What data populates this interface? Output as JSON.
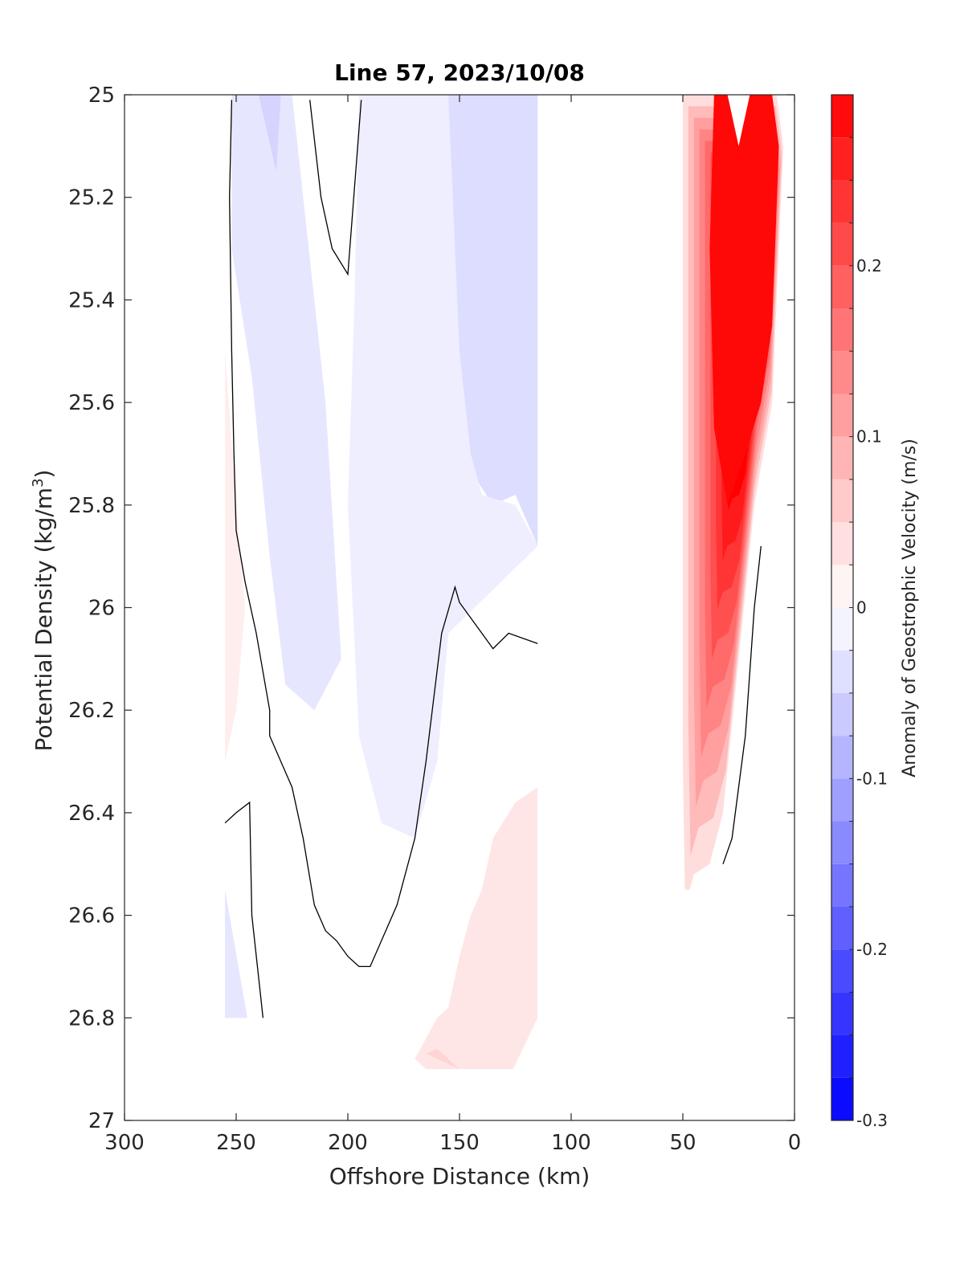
{
  "chart_data": {
    "type": "contourf",
    "title": "Line 57, 2023/10/08",
    "xlabel": "Offshore Distance (km)",
    "ylabel_main": "Potential Density (kg/m",
    "ylabel_sup": "3",
    "ylabel_close": ")",
    "xlim": [
      300,
      0
    ],
    "x_reversed": true,
    "ylim": [
      25,
      27
    ],
    "y_reversed": true,
    "xticks": [
      300,
      250,
      200,
      150,
      100,
      50,
      0
    ],
    "xtick_labels": [
      "300",
      "250",
      "200",
      "150",
      "100",
      "50",
      "0"
    ],
    "yticks": [
      25,
      25.2,
      25.4,
      25.6,
      25.8,
      26,
      26.2,
      26.4,
      26.6,
      26.8,
      27
    ],
    "ytick_labels": [
      "25",
      "25.2",
      "25.4",
      "25.6",
      "25.8",
      "26",
      "26.2",
      "26.4",
      "26.6",
      "26.8",
      "27"
    ],
    "colorbar": {
      "label": "Anomaly of Geostrophic Velocity (m/s)",
      "range": [
        -0.3,
        0.3
      ],
      "levels": [
        -0.3,
        -0.275,
        -0.25,
        -0.225,
        -0.2,
        -0.175,
        -0.15,
        -0.125,
        -0.1,
        -0.075,
        -0.05,
        -0.025,
        0,
        0.025,
        0.05,
        0.075,
        0.1,
        0.125,
        0.15,
        0.175,
        0.2,
        0.225,
        0.25,
        0.275,
        0.3
      ],
      "ticks": [
        -0.3,
        -0.2,
        -0.1,
        0,
        0.1,
        0.2
      ],
      "tick_labels": [
        "-0.3",
        "-0.2",
        "-0.1",
        "0",
        "0.1",
        "0.2"
      ],
      "colormap": "blue-white-red"
    },
    "colors": {
      "negative_max": "#0000ff",
      "zero": "#ffffff",
      "positive_max": "#ff0000",
      "contour_line": "#000000"
    },
    "regions": [
      {
        "name": "inshore-jet",
        "value": 0.25,
        "points": [
          [
            50,
            25
          ],
          [
            8,
            25
          ],
          [
            5,
            25.1
          ],
          [
            10,
            25.6
          ],
          [
            18,
            25.8
          ],
          [
            25,
            26.1
          ],
          [
            32,
            26.4
          ],
          [
            38,
            26.5
          ],
          [
            45,
            26.52
          ],
          [
            49,
            26.58
          ],
          [
            50,
            26.3
          ]
        ]
      },
      {
        "name": "inshore-jet-core",
        "value": 0.29,
        "points": [
          [
            36,
            25
          ],
          [
            10,
            25
          ],
          [
            7,
            25.1
          ],
          [
            10,
            25.45
          ],
          [
            15,
            25.6
          ],
          [
            22,
            25.7
          ],
          [
            30,
            25.8
          ],
          [
            36,
            25.65
          ],
          [
            38,
            25.3
          ]
        ]
      },
      {
        "name": "jet-notch",
        "value": 0,
        "points": [
          [
            30,
            25
          ],
          [
            20,
            25
          ],
          [
            25,
            25.1
          ]
        ]
      },
      {
        "name": "offshore-negative-core",
        "value": -0.09,
        "points": [
          [
            150,
            25
          ],
          [
            115,
            25
          ],
          [
            115,
            25.4
          ],
          [
            125,
            25.5
          ],
          [
            135,
            25.45
          ],
          [
            148,
            25.3
          ]
        ]
      },
      {
        "name": "offshore-negative-inner",
        "value": -0.06,
        "points": [
          [
            155,
            25
          ],
          [
            115,
            25
          ],
          [
            115,
            25.65
          ],
          [
            125,
            25.6
          ],
          [
            140,
            25.65
          ],
          [
            152,
            25.6
          ]
        ]
      },
      {
        "name": "offshore-negative-band",
        "value": -0.04,
        "points": [
          [
            175,
            25
          ],
          [
            115,
            25
          ],
          [
            115,
            25.88
          ],
          [
            125,
            25.78
          ],
          [
            135,
            25.8
          ],
          [
            150,
            25.7
          ],
          [
            160,
            25.7
          ],
          [
            170,
            25.7
          ],
          [
            180,
            25.45
          ],
          [
            185,
            25.3
          ],
          [
            187,
            25.0
          ]
        ]
      },
      {
        "name": "mid-negative",
        "value": -0.02,
        "points": [
          [
            195,
            25
          ],
          [
            155,
            25
          ],
          [
            150,
            25.5
          ],
          [
            145,
            25.7
          ],
          [
            140,
            25.78
          ],
          [
            125,
            25.8
          ],
          [
            115,
            25.88
          ],
          [
            155,
            26.05
          ],
          [
            160,
            26.3
          ],
          [
            170,
            26.45
          ],
          [
            185,
            26.42
          ],
          [
            195,
            26.25
          ],
          [
            200,
            25.8
          ],
          [
            197,
            25.4
          ]
        ]
      },
      {
        "name": "outer-negative",
        "value": -0.03,
        "points": [
          [
            252,
            25
          ],
          [
            225,
            25
          ],
          [
            215,
            25.4
          ],
          [
            210,
            25.6
          ],
          [
            203,
            26.1
          ],
          [
            215,
            26.2
          ],
          [
            228,
            26.15
          ],
          [
            235,
            25.9
          ],
          [
            243,
            25.55
          ],
          [
            252,
            25.3
          ]
        ]
      },
      {
        "name": "outer-negative-core",
        "value": -0.05,
        "points": [
          [
            240,
            25
          ],
          [
            230,
            25
          ],
          [
            232,
            25.15
          ]
        ]
      },
      {
        "name": "deep-positive-inner",
        "value": 0.03,
        "points": [
          [
            115,
            26.35
          ],
          [
            125,
            26.38
          ],
          [
            135,
            26.45
          ],
          [
            140,
            26.55
          ],
          [
            145,
            26.6
          ],
          [
            150,
            26.68
          ],
          [
            155,
            26.78
          ],
          [
            160,
            26.8
          ],
          [
            170,
            26.88
          ],
          [
            165,
            26.9
          ],
          [
            126,
            26.9
          ],
          [
            115,
            26.8
          ]
        ]
      },
      {
        "name": "deep-positive-core",
        "value": 0.05,
        "points": [
          [
            165,
            26.87
          ],
          [
            150,
            26.9
          ],
          [
            160,
            26.86
          ]
        ]
      },
      {
        "name": "west-positive-sliver",
        "value": 0.02,
        "points": [
          [
            255,
            25.5
          ],
          [
            250,
            25.8
          ],
          [
            246,
            26.0
          ],
          [
            250,
            26.2
          ],
          [
            255,
            26.3
          ]
        ]
      },
      {
        "name": "west-deep-negative",
        "value": -0.03,
        "points": [
          [
            255,
            26.55
          ],
          [
            245,
            26.8
          ],
          [
            255,
            26.8
          ]
        ]
      }
    ],
    "contours": [
      {
        "name": "zero-contour-west",
        "level": 0,
        "x": [
          252,
          253,
          252,
          251,
          250,
          246,
          241,
          237,
          235,
          235,
          230,
          225,
          220,
          215,
          210,
          205,
          200,
          195,
          190,
          185,
          178,
          170,
          165,
          158,
          152,
          150,
          140,
          135,
          128,
          115
        ],
        "y": [
          25.01,
          25.2,
          25.5,
          25.7,
          25.85,
          25.95,
          26.05,
          26.15,
          26.2,
          26.25,
          26.3,
          26.35,
          26.45,
          26.58,
          26.63,
          26.65,
          26.68,
          26.7,
          26.7,
          26.65,
          26.58,
          26.45,
          26.3,
          26.05,
          25.96,
          25.99,
          26.05,
          26.08,
          26.05,
          26.07
        ]
      },
      {
        "name": "zero-contour-north",
        "level": 0,
        "x": [
          217,
          212,
          207,
          200,
          194
        ],
        "y": [
          25.01,
          25.2,
          25.3,
          25.35,
          25.01
        ]
      },
      {
        "name": "zero-contour-deep-west",
        "level": 0,
        "x": [
          255,
          250,
          244,
          243,
          238
        ],
        "y": [
          26.42,
          26.4,
          26.38,
          26.6,
          26.8
        ]
      },
      {
        "name": "zero-contour-inshore",
        "level": 0,
        "x": [
          15,
          18,
          22,
          25,
          28,
          32
        ],
        "y": [
          25.88,
          26.0,
          26.25,
          26.35,
          26.45,
          26.5
        ]
      }
    ],
    "no_data": [
      {
        "name": "nearshore-gap",
        "x_range": [
          50,
          115
        ],
        "y_range": [
          25,
          27
        ]
      },
      {
        "name": "deep-nearshore-gap",
        "x_range": [
          50,
          35
        ],
        "y_range": [
          26.55,
          27
        ]
      }
    ]
  }
}
